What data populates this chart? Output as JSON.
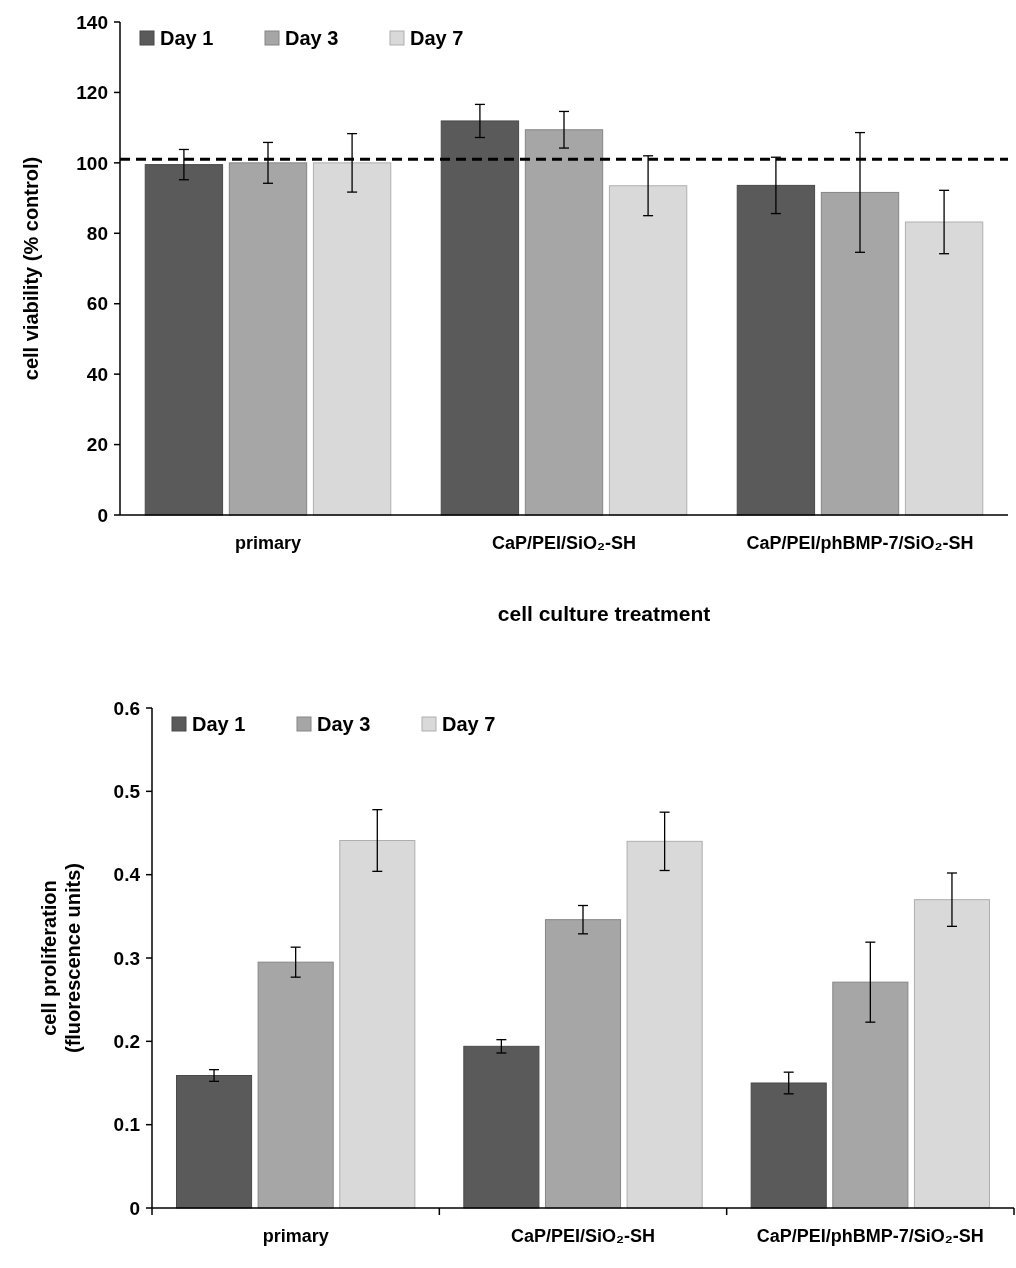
{
  "chart_data": [
    {
      "type": "bar",
      "xlabel": "cell culture treatment",
      "ylabel": "cell viability (% control)",
      "categories": [
        "primary",
        "CaP/PEI/SiO₂-SH",
        "CaP/PEI/phBMP-7/SiO₂-SH"
      ],
      "series": [
        {
          "name": "Day 1",
          "color": "#5a5a5a",
          "values": [
            99.5,
            111.9,
            93.6
          ],
          "errors": [
            4.3,
            4.7,
            8
          ]
        },
        {
          "name": "Day 3",
          "color": "#a6a6a6",
          "values": [
            100,
            109.4,
            91.6
          ],
          "errors": [
            5.8,
            5.2,
            17
          ]
        },
        {
          "name": "Day 7",
          "color": "#d9d9d9",
          "values": [
            100,
            93.5,
            83.2
          ],
          "errors": [
            8.3,
            8.5,
            9
          ]
        }
      ],
      "ylim": [
        0,
        140
      ],
      "yticks": [
        0,
        20,
        40,
        60,
        80,
        100,
        120,
        140
      ],
      "ref_lines": [
        {
          "axis": "y",
          "value": 101,
          "color": "#000000",
          "line_style": "dashed"
        }
      ],
      "legend": "top left",
      "grid": false
    },
    {
      "type": "bar",
      "ylabel": "cell proliferation\n(fluorescence units)",
      "categories": [
        "primary",
        "CaP/PEI/SiO₂-SH",
        "CaP/PEI/phBMP-7/SiO₂-SH"
      ],
      "series": [
        {
          "name": "Day 1",
          "color": "#5a5a5a",
          "values": [
            0.159,
            0.194,
            0.15
          ],
          "errors": [
            0.007,
            0.008,
            0.013
          ]
        },
        {
          "name": "Day 3",
          "color": "#a6a6a6",
          "values": [
            0.295,
            0.346,
            0.271
          ],
          "errors": [
            0.018,
            0.017,
            0.048
          ]
        },
        {
          "name": "Day 7",
          "color": "#d9d9d9",
          "values": [
            0.441,
            0.44,
            0.37
          ],
          "errors": [
            0.037,
            0.035,
            0.032
          ]
        }
      ],
      "ylim": [
        0,
        0.6
      ],
      "yticks": [
        0,
        0.1,
        0.2,
        0.3,
        0.4,
        0.5,
        0.6
      ],
      "legend": "top left",
      "grid": false
    }
  ]
}
